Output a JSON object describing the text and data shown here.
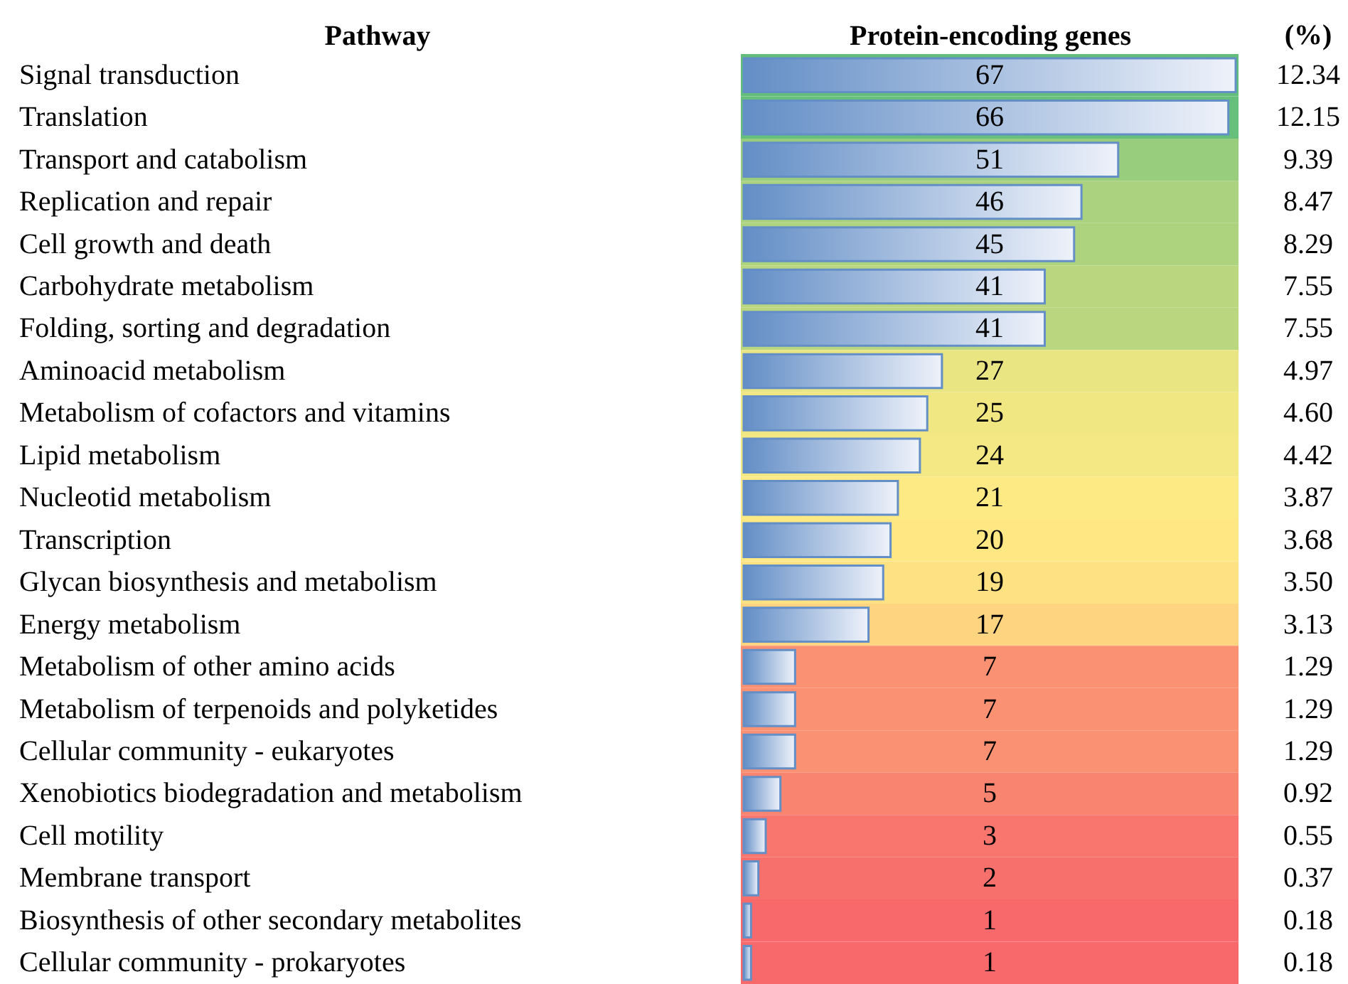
{
  "chart_data": {
    "type": "bar",
    "orientation": "horizontal",
    "ylabel": "Pathway",
    "xlabel": "Protein-encoding genes",
    "y2label": "(%)",
    "categories": [
      "Signal transduction",
      "Translation",
      "Transport and catabolism",
      "Replication and repair",
      "Cell growth and death",
      "Carbohydrate metabolism",
      "Folding, sorting and degradation",
      "Aminoacid metabolism",
      "Metabolism of cofactors and vitamins",
      "Lipid metabolism",
      "Nucleotid metabolism",
      "Transcription",
      "Glycan biosynthesis and metabolism",
      "Energy metabolism",
      "Metabolism of other amino acids",
      "Metabolism of terpenoids and polyketides",
      "Cellular community - eukaryotes",
      "Xenobiotics biodegradation and metabolism",
      "Cell motility",
      "Membrane transport",
      "Biosynthesis of other secondary metabolites",
      "Cellular community - prokaryotes"
    ],
    "values": [
      67,
      66,
      51,
      46,
      45,
      41,
      41,
      27,
      25,
      24,
      21,
      20,
      19,
      17,
      7,
      7,
      7,
      5,
      3,
      2,
      1,
      1
    ],
    "color": "#638ec6",
    "data_labels": true,
    "y2_categories": [
      "12.34",
      "12.15",
      "9.39",
      "8.47",
      "8.29",
      "7.55",
      "7.55",
      "4.97",
      "4.60",
      "4.42",
      "3.87",
      "3.68",
      "3.50",
      "3.13",
      "1.29",
      "1.29",
      "1.29",
      "0.92",
      "0.55",
      "0.37",
      "0.18",
      "0.18"
    ],
    "tick_labels": "y",
    "bands": [
      {
        "axis": "y",
        "from": "Signal transduction",
        "to": "Signal transduction",
        "color": "#63be7b"
      },
      {
        "axis": "y",
        "from": "Translation",
        "to": "Translation",
        "color": "#66bf7b"
      },
      {
        "axis": "y",
        "from": "Transport and catabolism",
        "to": "Transport and catabolism",
        "color": "#99cd7e"
      },
      {
        "axis": "y",
        "from": "Replication and repair",
        "to": "Replication and repair",
        "color": "#aad27f"
      },
      {
        "axis": "y",
        "from": "Cell growth and death",
        "to": "Cell growth and death",
        "color": "#add37f"
      },
      {
        "axis": "y",
        "from": "Carbohydrate metabolism",
        "to": "Carbohydrate metabolism",
        "color": "#bad780"
      },
      {
        "axis": "y",
        "from": "Folding, sorting and degradation",
        "to": "Folding, sorting and degradation",
        "color": "#bad780"
      },
      {
        "axis": "y",
        "from": "Aminoacid metabolism",
        "to": "Aminoacid metabolism",
        "color": "#e9e583"
      },
      {
        "axis": "y",
        "from": "Metabolism of cofactors and vitamins",
        "to": "Metabolism of cofactors and vitamins",
        "color": "#f0e783"
      },
      {
        "axis": "y",
        "from": "Lipid metabolism",
        "to": "Lipid metabolism",
        "color": "#f3e883"
      },
      {
        "axis": "y",
        "from": "Nucleotid metabolism",
        "to": "Nucleotid metabolism",
        "color": "#fdea84"
      },
      {
        "axis": "y",
        "from": "Transcription",
        "to": "Transcription",
        "color": "#ffe883"
      },
      {
        "axis": "y",
        "from": "Glycan biosynthesis and metabolism",
        "to": "Glycan biosynthesis and metabolism",
        "color": "#fee182"
      },
      {
        "axis": "y",
        "from": "Energy metabolism",
        "to": "Energy metabolism",
        "color": "#fed480"
      },
      {
        "axis": "y",
        "from": "Metabolism of other amino acids",
        "to": "Metabolism of other amino acids",
        "color": "#fa9173"
      },
      {
        "axis": "y",
        "from": "Metabolism of terpenoids and polyketides",
        "to": "Metabolism of terpenoids and polyketides",
        "color": "#fa9173"
      },
      {
        "axis": "y",
        "from": "Cellular community - eukaryotes",
        "to": "Cellular community - eukaryotes",
        "color": "#fa9173"
      },
      {
        "axis": "y",
        "from": "Xenobiotics biodegradation and metabolism",
        "to": "Xenobiotics biodegradation and metabolism",
        "color": "#f98470"
      },
      {
        "axis": "y",
        "from": "Cell motility",
        "to": "Cell motility",
        "color": "#f9766e"
      },
      {
        "axis": "y",
        "from": "Membrane transport",
        "to": "Membrane transport",
        "color": "#f8706c"
      },
      {
        "axis": "y",
        "from": "Biosynthesis of other secondary metabolites",
        "to": "Biosynthesis of other secondary metabolites",
        "color": "#f8696b"
      },
      {
        "axis": "y",
        "from": "Cellular community - prokaryotes",
        "to": "Cellular community - prokaryotes",
        "color": "#f8696b"
      }
    ]
  }
}
